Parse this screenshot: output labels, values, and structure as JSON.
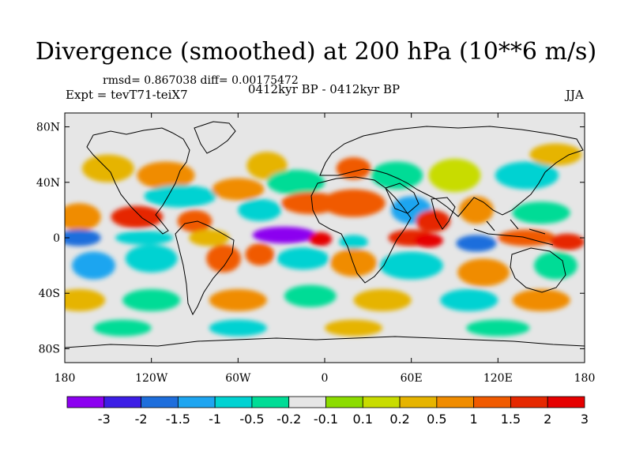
{
  "title": "Divergence (smoothed) at 200 hPa (10**6 m/s)",
  "stats": "rmsd= 0.867038 diff= 0.00175472",
  "experiment": "Expt = tevT71-teiX7",
  "period_label": "0412kyr BP - 0412kyr BP",
  "season": "JJA",
  "map": {
    "projection": "cylindrical equidistant",
    "lon_range": [
      -180,
      180
    ],
    "lat_range": [
      -90,
      90
    ],
    "lat_ticks": [
      {
        "value": 80,
        "label": "80N"
      },
      {
        "value": 40,
        "label": "40N"
      },
      {
        "value": 0,
        "label": "0"
      },
      {
        "value": -40,
        "label": "40S"
      },
      {
        "value": -80,
        "label": "80S"
      }
    ],
    "lon_ticks": [
      {
        "value": -180,
        "label": "180"
      },
      {
        "value": -120,
        "label": "120W"
      },
      {
        "value": -60,
        "label": "60W"
      },
      {
        "value": 0,
        "label": "0"
      },
      {
        "value": 60,
        "label": "60E"
      },
      {
        "value": 120,
        "label": "120E"
      },
      {
        "value": 180,
        "label": "180"
      }
    ],
    "features": [
      {
        "name": "equatorial-atlantic-convergence-minimum",
        "lon": -20,
        "lat": 2,
        "value": -3
      },
      {
        "name": "guinea-coast-divergence-maximum",
        "lon": -5,
        "lat": 0,
        "value": 3
      },
      {
        "name": "indian-ocean-divergence-maximum",
        "lon": 70,
        "lat": 0,
        "value": 3
      },
      {
        "name": "arabian-sea-divergence",
        "lon": 75,
        "lat": 15,
        "value": 2
      },
      {
        "name": "west-pacific-divergence",
        "lon": 150,
        "lat": 0,
        "value": 2
      },
      {
        "name": "east-pacific-divergence",
        "lon": -120,
        "lat": 12,
        "value": 1.5
      },
      {
        "name": "south-america-divergence",
        "lon": -45,
        "lat": -15,
        "value": 1.5
      },
      {
        "name": "north-atlantic-divergence",
        "lon": -10,
        "lat": 30,
        "value": 1.5
      },
      {
        "name": "maritime-continent-convergence",
        "lon": 110,
        "lat": -5,
        "value": -1.5
      },
      {
        "name": "tropical-pacific-convergence",
        "lon": -160,
        "lat": 0,
        "value": -1
      }
    ]
  },
  "colorbar": {
    "colors": [
      "#8c00f0",
      "#3c1ee6",
      "#1e6edc",
      "#1ea5f0",
      "#00d2d2",
      "#00dc96",
      "#e6e6e6",
      "#8cdc00",
      "#c8dc00",
      "#e6b400",
      "#f08c00",
      "#f05a00",
      "#e62800",
      "#e60000"
    ],
    "levels": [
      "-3",
      "-2",
      "-1.5",
      "-1",
      "-0.5",
      "-0.2",
      "-0.1",
      "0.1",
      "0.2",
      "0.5",
      "1",
      "1.5",
      "2",
      "3"
    ]
  }
}
